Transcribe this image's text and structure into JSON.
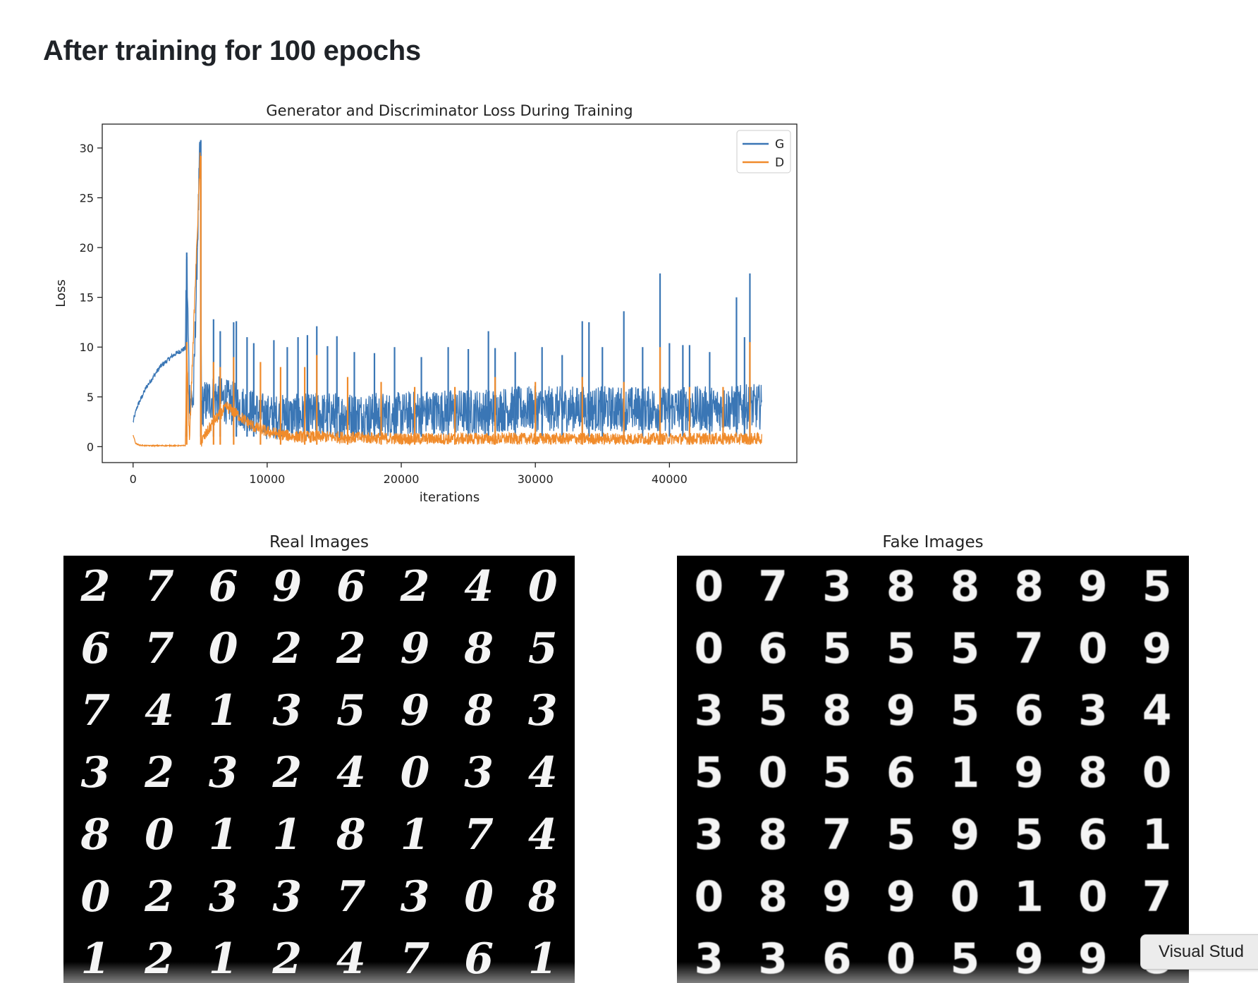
{
  "heading": "After training for 100 epochs",
  "chart_data": {
    "type": "line",
    "title": "Generator and Discriminator Loss During Training",
    "xlabel": "iterations",
    "ylabel": "Loss",
    "xlim": [
      -2300,
      49500
    ],
    "ylim": [
      -1.6,
      32.4
    ],
    "xticks": [
      0,
      10000,
      20000,
      30000,
      40000
    ],
    "yticks": [
      0,
      5,
      10,
      15,
      20,
      25,
      30
    ],
    "grid": false,
    "legend_position": "top-right",
    "series": [
      {
        "name": "G",
        "color": "#3a76b5",
        "x": [
          0,
          300,
          1000,
          2000,
          3000,
          3900,
          4000,
          4200,
          4500,
          5000,
          5100,
          5400,
          6000,
          7000,
          8000,
          9000,
          10000,
          12000,
          14000,
          16000,
          18000,
          20000,
          22000,
          24000,
          26000,
          28000,
          30000,
          32000,
          34000,
          36000,
          38000,
          40000,
          42000,
          44000,
          46000,
          46900
        ],
        "y": [
          2.5,
          4.0,
          6.0,
          8.0,
          9.2,
          9.9,
          19.5,
          5.0,
          4.5,
          30.8,
          4.0,
          4.5,
          5.0,
          4.5,
          4.0,
          3.5,
          3.0,
          3.0,
          3.2,
          3.2,
          3.2,
          3.2,
          3.5,
          3.5,
          3.5,
          3.8,
          3.8,
          3.8,
          3.8,
          3.8,
          3.8,
          3.8,
          3.8,
          3.8,
          4.0,
          4.0
        ],
        "noise_band": 2.3,
        "spike_x": [
          4000,
          5050,
          6000,
          6500,
          7500,
          7700,
          8500,
          9000,
          10500,
          11500,
          12300,
          13000,
          13700,
          14500,
          15200,
          16500,
          18000,
          19500,
          21500,
          23500,
          25000,
          26500,
          27000,
          28500,
          30500,
          32000,
          33500,
          34000,
          35000,
          36600,
          38000,
          39300,
          40000,
          41000,
          41500,
          43000,
          45000,
          45600,
          46000
        ],
        "spike_y": [
          19.5,
          30.8,
          12.8,
          11.6,
          12.5,
          12.6,
          11.0,
          10.4,
          10.7,
          10.0,
          11.0,
          11.2,
          12.1,
          10.1,
          11.1,
          9.5,
          9.4,
          10.0,
          9.0,
          10.0,
          9.8,
          11.6,
          9.9,
          9.5,
          10.0,
          9.2,
          12.6,
          12.5,
          10.0,
          13.6,
          10.0,
          17.4,
          10.4,
          10.2,
          10.2,
          9.5,
          15.0,
          11.0,
          17.4
        ]
      },
      {
        "name": "D",
        "color": "#f08b2b",
        "x": [
          0,
          200,
          500,
          1000,
          2000,
          3000,
          3900,
          4000,
          4200,
          5000,
          5100,
          6000,
          7000,
          8000,
          9000,
          10000,
          12000,
          14000,
          20000,
          30000,
          40000,
          46900
        ],
        "y": [
          1.2,
          0.3,
          0.15,
          0.1,
          0.1,
          0.1,
          0.1,
          10.5,
          0.5,
          29.2,
          0.5,
          2.5,
          4.0,
          3.0,
          2.0,
          1.5,
          1.0,
          1.0,
          0.8,
          0.8,
          0.8,
          0.8
        ],
        "noise_band": 0.6,
        "spike_x": [
          4000,
          5050,
          6000,
          6500,
          7500,
          9500,
          11000,
          12800,
          13700,
          16000,
          18500,
          21000,
          24000,
          27000,
          30000,
          33500,
          36600,
          39300,
          41500,
          44000,
          46000
        ],
        "spike_y": [
          10.5,
          29.2,
          8.5,
          8.0,
          9.0,
          8.5,
          8.0,
          8.0,
          9.2,
          7.0,
          6.5,
          6.0,
          6.0,
          7.0,
          6.5,
          7.0,
          6.5,
          10.0,
          6.0,
          6.0,
          10.5
        ]
      }
    ]
  },
  "real_panel": {
    "title": "Real Images",
    "digits": [
      "2",
      "7",
      "6",
      "9",
      "6",
      "2",
      "4",
      "0",
      "6",
      "7",
      "0",
      "2",
      "2",
      "9",
      "8",
      "5",
      "7",
      "4",
      "1",
      "3",
      "5",
      "9",
      "8",
      "3",
      "3",
      "2",
      "3",
      "2",
      "4",
      "0",
      "3",
      "4",
      "8",
      "0",
      "1",
      "1",
      "8",
      "1",
      "7",
      "4",
      "0",
      "2",
      "3",
      "3",
      "7",
      "3",
      "0",
      "8",
      "1",
      "2",
      "1",
      "2",
      "4",
      "7",
      "6",
      "1"
    ]
  },
  "fake_panel": {
    "title": "Fake Images",
    "digits": [
      "0",
      "7",
      "3",
      "8",
      "8",
      "8",
      "9",
      "5",
      "0",
      "6",
      "5",
      "5",
      "5",
      "7",
      "0",
      "9",
      "3",
      "5",
      "8",
      "9",
      "5",
      "6",
      "3",
      "4",
      "5",
      "0",
      "5",
      "6",
      "1",
      "9",
      "8",
      "0",
      "3",
      "8",
      "7",
      "5",
      "9",
      "5",
      "6",
      "1",
      "0",
      "8",
      "9",
      "9",
      "0",
      "1",
      "0",
      "7",
      "3",
      "3",
      "6",
      "0",
      "5",
      "9",
      "9",
      "8"
    ]
  },
  "tooltip": {
    "label": "Visual Stud"
  }
}
